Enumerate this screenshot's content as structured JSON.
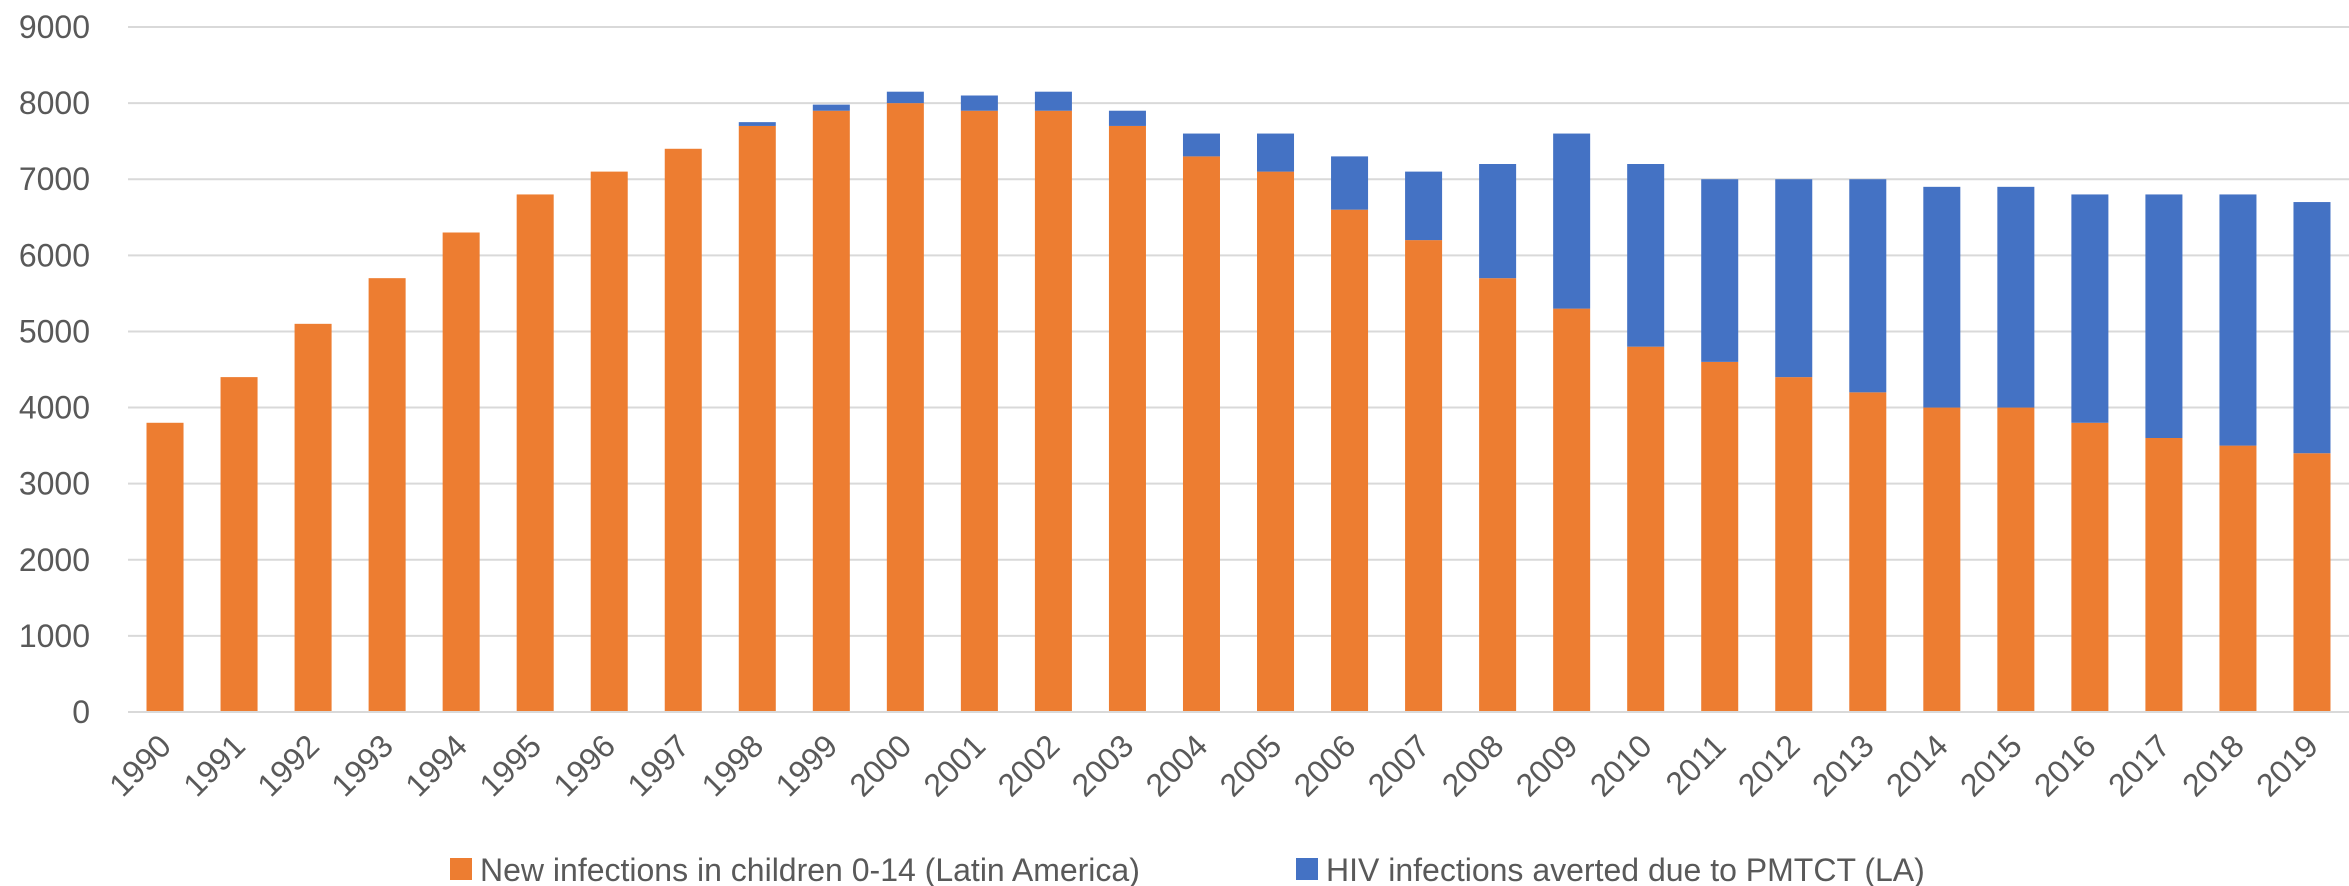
{
  "chart_data": {
    "type": "bar",
    "stacked": true,
    "categories": [
      "1990",
      "1991",
      "1992",
      "1993",
      "1994",
      "1995",
      "1996",
      "1997",
      "1998",
      "1999",
      "2000",
      "2001",
      "2002",
      "2003",
      "2004",
      "2005",
      "2006",
      "2007",
      "2008",
      "2009",
      "2010",
      "2011",
      "2012",
      "2013",
      "2014",
      "2015",
      "2016",
      "2017",
      "2018",
      "2019"
    ],
    "series": [
      {
        "name": "New infections in children 0-14 (Latin America)",
        "color": "#ED7D31",
        "values": [
          3800,
          4400,
          5100,
          5700,
          6300,
          6800,
          7100,
          7400,
          7700,
          7900,
          8000,
          7900,
          7900,
          7700,
          7300,
          7100,
          6600,
          6200,
          5700,
          5300,
          4800,
          4600,
          4400,
          4200,
          4000,
          4000,
          3800,
          3600,
          3500,
          3400
        ]
      },
      {
        "name": "HIV infections averted due to PMTCT (LA)",
        "color": "#4472C4",
        "values": [
          0,
          0,
          0,
          0,
          0,
          0,
          0,
          0,
          50,
          80,
          150,
          200,
          250,
          200,
          300,
          500,
          700,
          900,
          1500,
          2300,
          2400,
          2400,
          2600,
          2800,
          2900,
          2900,
          3000,
          3200,
          3300,
          3300
        ]
      }
    ],
    "ylim": [
      0,
      9000
    ],
    "yticks": [
      "0",
      "1000",
      "2000",
      "3000",
      "4000",
      "5000",
      "6000",
      "7000",
      "8000",
      "9000"
    ],
    "grid": true,
    "legend_position": "bottom"
  }
}
